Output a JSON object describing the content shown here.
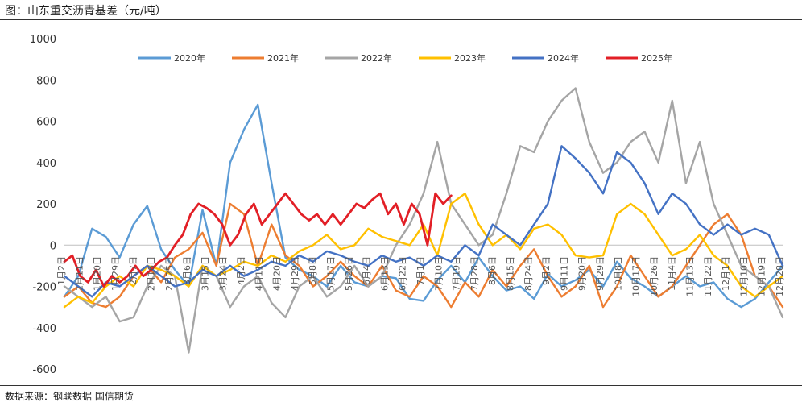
{
  "title": "图：山东重交沥青基差（元/吨）",
  "source": "数据来源：钢联数据 国信期货",
  "chart_data": {
    "type": "line",
    "title": "山东重交沥青基差（元/吨）",
    "xlabel": "",
    "ylabel": "元/吨",
    "ylim": [
      -600,
      1000
    ],
    "yticks": [
      1000,
      800,
      600,
      400,
      200,
      0,
      -200,
      -400,
      -600
    ],
    "x_range_days": [
      1,
      365
    ],
    "categories": [
      "1月2日",
      "1月11日",
      "1月20日",
      "1月29日",
      "2月7日",
      "2月16日",
      "2月25日",
      "3月6日",
      "3月15日",
      "3月24日",
      "4月2日",
      "4月11日",
      "4月20日",
      "4月29日",
      "5月8日",
      "5月17日",
      "5月26日",
      "6月4日",
      "6月13日",
      "6月22日",
      "7月1日",
      "7月10日",
      "7月19日",
      "7月28日",
      "8月6日",
      "8月15日",
      "8月24日",
      "9月2日",
      "9月11日",
      "9月20日",
      "9月29日",
      "10月8日",
      "10月17日",
      "10月26日",
      "11月4日",
      "11月13日",
      "11月22日",
      "12月1日",
      "12月10日",
      "12月19日",
      "12月28日"
    ],
    "legend_position": "top",
    "series": [
      {
        "name": "2020年",
        "color": "#5b9bd5",
        "x": [
          1,
          8,
          15,
          22,
          29,
          36,
          43,
          50,
          57,
          64,
          71,
          78,
          85,
          92,
          99,
          106,
          113,
          120,
          127,
          134,
          141,
          148,
          155,
          162,
          169,
          176,
          183,
          190,
          197,
          204,
          211,
          218,
          225,
          232,
          239,
          246,
          253,
          260,
          267,
          274,
          281,
          288,
          295,
          302,
          309,
          316,
          323,
          330,
          337,
          344,
          351,
          358,
          365
        ],
        "y": [
          -250,
          -150,
          80,
          40,
          -60,
          100,
          190,
          -20,
          -120,
          -200,
          170,
          -100,
          400,
          560,
          680,
          300,
          -60,
          -120,
          -150,
          -200,
          -100,
          -180,
          -200,
          -150,
          -160,
          -260,
          -270,
          -170,
          -100,
          -180,
          -60,
          -150,
          -220,
          -200,
          -260,
          -140,
          -200,
          -170,
          -120,
          -200,
          -80,
          -160,
          -200,
          -250,
          -200,
          -150,
          -200,
          -180,
          -260,
          -300,
          -260,
          -180,
          -100
        ]
      },
      {
        "name": "2021年",
        "color": "#ed7d31",
        "x": [
          1,
          8,
          15,
          22,
          29,
          36,
          43,
          50,
          57,
          64,
          71,
          78,
          85,
          92,
          99,
          106,
          113,
          120,
          127,
          134,
          141,
          148,
          155,
          162,
          169,
          176,
          183,
          190,
          197,
          204,
          211,
          218,
          225,
          232,
          239,
          246,
          253,
          260,
          267,
          274,
          281,
          288,
          295,
          302,
          309,
          316,
          323,
          330,
          337,
          344,
          351,
          358,
          365
        ],
        "y": [
          -250,
          -200,
          -280,
          -300,
          -250,
          -150,
          -100,
          -180,
          -60,
          -20,
          60,
          -100,
          200,
          150,
          -100,
          100,
          -50,
          -100,
          -200,
          -150,
          -80,
          -150,
          -200,
          -100,
          -220,
          -250,
          -150,
          -200,
          -300,
          -180,
          -250,
          -120,
          -200,
          -100,
          -20,
          -150,
          -250,
          -200,
          -100,
          -300,
          -200,
          -50,
          -150,
          -250,
          -200,
          -100,
          0,
          100,
          150,
          50,
          -150,
          -200,
          -300
        ]
      },
      {
        "name": "2022年",
        "color": "#a5a5a5",
        "x": [
          1,
          8,
          15,
          22,
          29,
          36,
          43,
          50,
          57,
          64,
          71,
          78,
          85,
          92,
          99,
          106,
          113,
          120,
          127,
          134,
          141,
          148,
          155,
          162,
          169,
          176,
          183,
          190,
          197,
          204,
          211,
          218,
          225,
          232,
          239,
          246,
          253,
          260,
          267,
          274,
          281,
          288,
          295,
          302,
          309,
          316,
          323,
          330,
          337,
          344,
          351,
          358,
          365
        ],
        "y": [
          -200,
          -250,
          -300,
          -250,
          -370,
          -350,
          -200,
          -100,
          -150,
          -520,
          -100,
          -150,
          -300,
          -200,
          -150,
          -280,
          -350,
          -200,
          -150,
          -250,
          -200,
          -100,
          -200,
          -150,
          0,
          100,
          250,
          500,
          200,
          100,
          0,
          50,
          250,
          480,
          450,
          600,
          700,
          760,
          500,
          350,
          400,
          500,
          550,
          400,
          700,
          300,
          500,
          200,
          50,
          -100,
          -150,
          -200,
          -350
        ]
      },
      {
        "name": "2023年",
        "color": "#ffc000",
        "x": [
          1,
          8,
          15,
          22,
          29,
          36,
          43,
          50,
          57,
          64,
          71,
          78,
          85,
          92,
          99,
          106,
          113,
          120,
          127,
          134,
          141,
          148,
          155,
          162,
          169,
          176,
          183,
          190,
          197,
          204,
          211,
          218,
          225,
          232,
          239,
          246,
          253,
          260,
          267,
          274,
          281,
          288,
          295,
          302,
          309,
          316,
          323,
          330,
          337,
          344,
          351,
          358,
          365
        ],
        "y": [
          -300,
          -250,
          -280,
          -200,
          -150,
          -200,
          -100,
          -120,
          -150,
          -200,
          -100,
          -150,
          -120,
          -80,
          -100,
          -50,
          -80,
          -30,
          0,
          50,
          -20,
          0,
          80,
          40,
          20,
          0,
          100,
          -50,
          200,
          250,
          100,
          0,
          50,
          -20,
          80,
          100,
          50,
          -50,
          -60,
          -50,
          150,
          200,
          150,
          50,
          -50,
          -20,
          50,
          -50,
          -100,
          -200,
          -250,
          -200,
          -150
        ]
      },
      {
        "name": "2024年",
        "color": "#4472c4",
        "x": [
          1,
          8,
          15,
          22,
          29,
          36,
          43,
          50,
          57,
          64,
          71,
          78,
          85,
          92,
          99,
          106,
          113,
          120,
          127,
          134,
          141,
          148,
          155,
          162,
          169,
          176,
          183,
          190,
          197,
          204,
          211,
          218,
          225,
          232,
          239,
          246,
          253,
          260,
          267,
          274,
          281,
          288,
          295,
          302,
          309,
          316,
          323,
          330,
          337,
          344,
          351,
          358,
          365
        ],
        "y": [
          -150,
          -200,
          -250,
          -180,
          -200,
          -150,
          -100,
          -150,
          -200,
          -180,
          -120,
          -150,
          -100,
          -150,
          -120,
          -80,
          -100,
          -50,
          -80,
          -30,
          -50,
          -80,
          -100,
          -50,
          -80,
          -60,
          -100,
          -50,
          -80,
          0,
          -50,
          100,
          50,
          0,
          100,
          200,
          480,
          420,
          350,
          250,
          450,
          400,
          300,
          150,
          250,
          200,
          100,
          50,
          100,
          50,
          80,
          50,
          -100
        ]
      },
      {
        "name": "2025年",
        "color": "#e21f26",
        "x": [
          1,
          5,
          9,
          13,
          17,
          21,
          25,
          29,
          33,
          37,
          41,
          45,
          49,
          53,
          57,
          61,
          65,
          69,
          73,
          77,
          81,
          85,
          89,
          93,
          97,
          101,
          105,
          109,
          113,
          117,
          121,
          125,
          129,
          133,
          137,
          141,
          145,
          149,
          153,
          157,
          161,
          165,
          169,
          173,
          177,
          181,
          185,
          189,
          193,
          197
        ],
        "y": [
          -80,
          -50,
          -150,
          -180,
          -120,
          -200,
          -150,
          -180,
          -150,
          -100,
          -150,
          -120,
          -80,
          -60,
          0,
          50,
          150,
          200,
          180,
          150,
          100,
          0,
          50,
          150,
          200,
          100,
          150,
          200,
          250,
          200,
          150,
          120,
          150,
          100,
          150,
          100,
          150,
          200,
          180,
          220,
          250,
          150,
          200,
          100,
          200,
          150,
          0,
          250,
          200,
          240
        ]
      }
    ]
  }
}
